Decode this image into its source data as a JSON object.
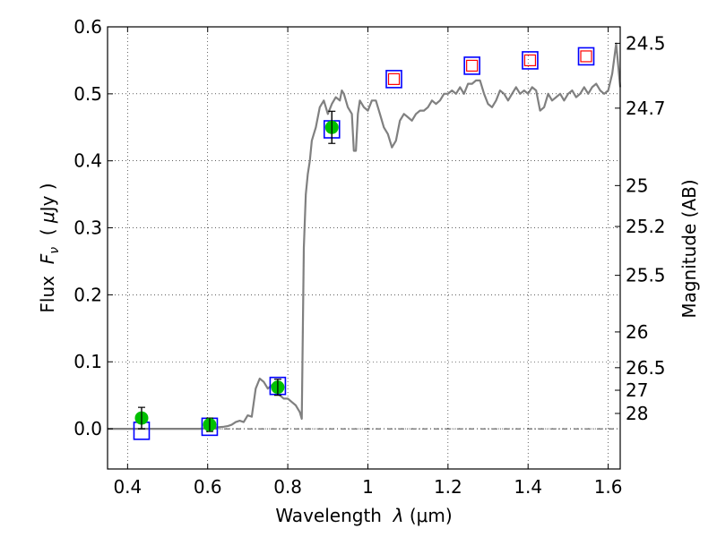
{
  "chart_data": {
    "type": "scatter",
    "xlabel": "Wavelength  λ (μm)",
    "ylabel": "Flux  F_ν  ( μJy )",
    "ylabel_parts": {
      "prefix": "Flux  ",
      "symbol": "F",
      "subscript": "ν",
      "unit_open": "  ( ",
      "unit_mu": "μ",
      "unit_rest": "Jy )"
    },
    "xlabel_parts": {
      "prefix": "Wavelength  ",
      "symbol": "λ",
      "unit": " (μm)"
    },
    "y2label": "Magnitude (AB)",
    "xlim": [
      0.35,
      1.63
    ],
    "ylim": [
      -0.06,
      0.6
    ],
    "grid": true,
    "x_ticks": [
      {
        "value": 0.4,
        "label": "0.4"
      },
      {
        "value": 0.6,
        "label": "0.6"
      },
      {
        "value": 0.8,
        "label": "0.8"
      },
      {
        "value": 1.0,
        "label": "1"
      },
      {
        "value": 1.2,
        "label": "1.2"
      },
      {
        "value": 1.4,
        "label": "1.4"
      },
      {
        "value": 1.6,
        "label": "1.6"
      }
    ],
    "y_ticks": [
      {
        "value": 0.0,
        "label": "0.0"
      },
      {
        "value": 0.1,
        "label": "0.1"
      },
      {
        "value": 0.2,
        "label": "0.2"
      },
      {
        "value": 0.3,
        "label": "0.3"
      },
      {
        "value": 0.4,
        "label": "0.4"
      },
      {
        "value": 0.5,
        "label": "0.5"
      },
      {
        "value": 0.6,
        "label": "0.6"
      }
    ],
    "y2_ticks": [
      {
        "value": 24.5,
        "label": "24.5"
      },
      {
        "value": 24.7,
        "label": "24.7"
      },
      {
        "value": 25,
        "label": "25"
      },
      {
        "value": 25.2,
        "label": "25.2"
      },
      {
        "value": 25.5,
        "label": "25.5"
      },
      {
        "value": 26,
        "label": "26"
      },
      {
        "value": 26.5,
        "label": "26.5"
      },
      {
        "value": 27,
        "label": "27"
      },
      {
        "value": 28,
        "label": "28"
      }
    ],
    "zero_line": 0.0,
    "series": [
      {
        "kind": "line",
        "color": "#808080",
        "x": [
          0.35,
          0.4,
          0.45,
          0.5,
          0.55,
          0.58,
          0.6,
          0.62,
          0.64,
          0.65,
          0.66,
          0.67,
          0.68,
          0.69,
          0.7,
          0.71,
          0.72,
          0.73,
          0.74,
          0.75,
          0.76,
          0.77,
          0.78,
          0.79,
          0.8,
          0.81,
          0.82,
          0.83,
          0.835,
          0.84,
          0.845,
          0.85,
          0.855,
          0.86,
          0.865,
          0.87,
          0.88,
          0.89,
          0.9,
          0.91,
          0.92,
          0.93,
          0.935,
          0.94,
          0.95,
          0.96,
          0.965,
          0.97,
          0.975,
          0.98,
          0.99,
          1.0,
          1.01,
          1.02,
          1.03,
          1.04,
          1.05,
          1.06,
          1.07,
          1.08,
          1.09,
          1.1,
          1.11,
          1.12,
          1.13,
          1.14,
          1.15,
          1.16,
          1.17,
          1.18,
          1.19,
          1.2,
          1.21,
          1.22,
          1.23,
          1.24,
          1.25,
          1.26,
          1.27,
          1.28,
          1.29,
          1.3,
          1.31,
          1.32,
          1.33,
          1.34,
          1.35,
          1.36,
          1.37,
          1.38,
          1.39,
          1.4,
          1.41,
          1.42,
          1.43,
          1.44,
          1.45,
          1.46,
          1.47,
          1.48,
          1.49,
          1.5,
          1.51,
          1.52,
          1.53,
          1.54,
          1.55,
          1.56,
          1.57,
          1.58,
          1.59,
          1.6,
          1.61,
          1.62,
          1.63
        ],
        "y": [
          0.0,
          0.0,
          0.0,
          0.0,
          0.0,
          0.0,
          0.001,
          0.002,
          0.003,
          0.004,
          0.006,
          0.01,
          0.012,
          0.01,
          0.02,
          0.018,
          0.06,
          0.075,
          0.07,
          0.06,
          0.065,
          0.055,
          0.05,
          0.045,
          0.045,
          0.04,
          0.035,
          0.025,
          0.015,
          0.27,
          0.35,
          0.38,
          0.4,
          0.43,
          0.44,
          0.45,
          0.48,
          0.49,
          0.47,
          0.485,
          0.495,
          0.49,
          0.505,
          0.5,
          0.48,
          0.47,
          0.415,
          0.415,
          0.47,
          0.49,
          0.48,
          0.475,
          0.49,
          0.49,
          0.47,
          0.45,
          0.44,
          0.42,
          0.43,
          0.46,
          0.47,
          0.465,
          0.46,
          0.47,
          0.475,
          0.475,
          0.48,
          0.49,
          0.485,
          0.49,
          0.5,
          0.5,
          0.505,
          0.5,
          0.51,
          0.5,
          0.515,
          0.515,
          0.52,
          0.52,
          0.5,
          0.485,
          0.48,
          0.49,
          0.505,
          0.5,
          0.49,
          0.5,
          0.51,
          0.5,
          0.505,
          0.5,
          0.51,
          0.505,
          0.475,
          0.48,
          0.5,
          0.49,
          0.495,
          0.5,
          0.49,
          0.5,
          0.505,
          0.495,
          0.5,
          0.51,
          0.5,
          0.51,
          0.515,
          0.505,
          0.5,
          0.505,
          0.53,
          0.575,
          0.51
        ]
      },
      {
        "kind": "blue-open-square",
        "color": "#0000ff",
        "x": [
          0.435,
          0.605,
          0.775,
          0.91,
          1.065,
          1.26,
          1.405,
          1.545
        ],
        "y": [
          -0.003,
          0.003,
          0.064,
          0.447,
          0.522,
          0.542,
          0.55,
          0.556
        ]
      },
      {
        "kind": "red-open-square",
        "color": "#ff0000",
        "x": [
          1.065,
          1.26,
          1.405,
          1.545
        ],
        "y": [
          0.522,
          0.542,
          0.55,
          0.556
        ]
      },
      {
        "kind": "green-point-errorbar",
        "color": "#00c000",
        "x": [
          0.435,
          0.605,
          0.775,
          0.91
        ],
        "y": [
          0.016,
          0.006,
          0.062,
          0.45
        ],
        "err": [
          0.016,
          0.01,
          0.012,
          0.024
        ]
      }
    ]
  }
}
